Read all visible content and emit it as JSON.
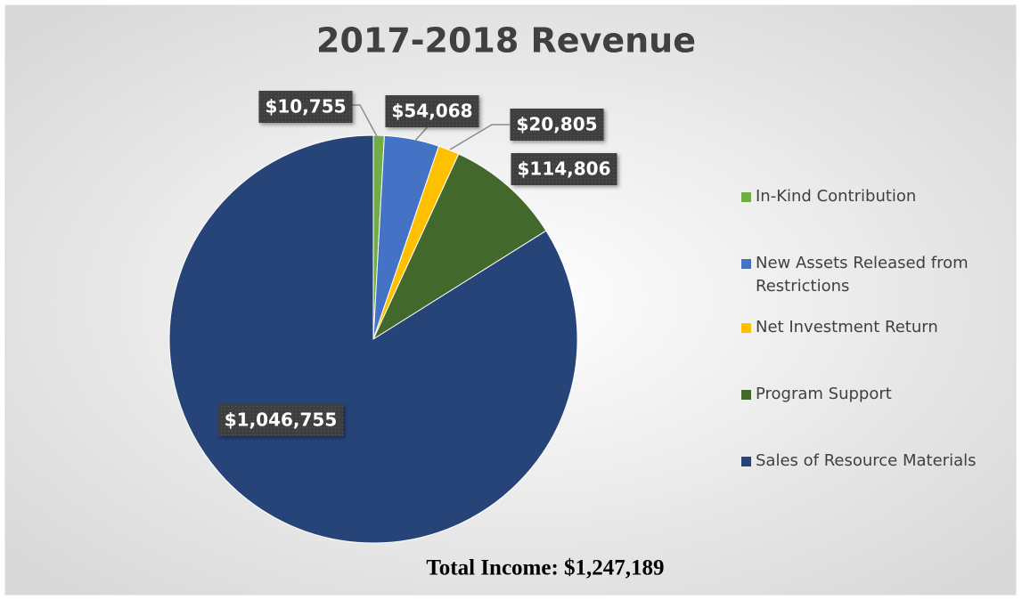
{
  "chart_data": {
    "type": "pie",
    "title": "2017-2018 Revenue",
    "categories": [
      "In-Kind Contribution",
      "New Assets Released from Restrictions",
      "Net Investment Return",
      "Program Support",
      "Sales of Resource Materials"
    ],
    "values": [
      10755,
      54068,
      20805,
      114806,
      1046755
    ],
    "value_labels": [
      "$10,755",
      "$54,068",
      "$20,805",
      "$114,806",
      "$1,046,755"
    ],
    "colors": [
      "#70ad47",
      "#4472c4",
      "#ffc000",
      "#43682b",
      "#264478"
    ],
    "annotation": "Total Income: $1,247,189",
    "legend": "right"
  }
}
